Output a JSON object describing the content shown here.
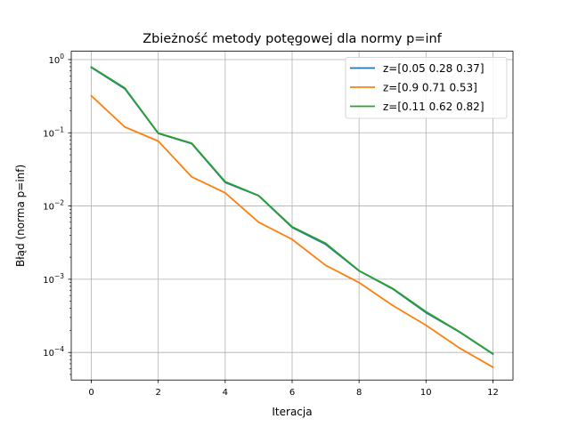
{
  "chart_data": {
    "type": "line",
    "title": "Zbieżność metody potęgowej dla normy p=inf",
    "xlabel": "Iteracja",
    "ylabel": "Błąd (norma p=inf)",
    "xscale": "linear",
    "yscale": "log",
    "xlim": [
      -0.6,
      12.6
    ],
    "ylim": [
      4.2e-05,
      1.3
    ],
    "grid": true,
    "legend_position": "top-right",
    "x": [
      0,
      1,
      2,
      3,
      4,
      5,
      6,
      7,
      8,
      9,
      10,
      11,
      12
    ],
    "xticks": [
      {
        "value": 0,
        "label": "0"
      },
      {
        "value": 2,
        "label": "2"
      },
      {
        "value": 4,
        "label": "4"
      },
      {
        "value": 6,
        "label": "6"
      },
      {
        "value": 8,
        "label": "8"
      },
      {
        "value": 10,
        "label": "10"
      },
      {
        "value": 12,
        "label": "12"
      }
    ],
    "yticks": [
      {
        "value": 1,
        "base": "10",
        "exp": "0"
      },
      {
        "value": 0.1,
        "base": "10",
        "exp": "−1"
      },
      {
        "value": 0.01,
        "base": "10",
        "exp": "−2"
      },
      {
        "value": 0.001,
        "base": "10",
        "exp": "−3"
      },
      {
        "value": 0.0001,
        "base": "10",
        "exp": "−4"
      }
    ],
    "series": [
      {
        "name": "z=[0.05 0.28 0.37]",
        "color": "#1f77b4",
        "values": [
          0.78,
          0.4,
          0.098,
          0.071,
          0.021,
          0.0138,
          0.0051,
          0.003,
          0.0013,
          0.00074,
          0.00035,
          0.00019,
          9.5e-05
        ]
      },
      {
        "name": "z=[0.9  0.71 0.53]",
        "color": "#ff7f0e",
        "values": [
          0.32,
          0.12,
          0.077,
          0.025,
          0.0151,
          0.006,
          0.0035,
          0.00155,
          0.0009,
          0.00044,
          0.000235,
          0.000115,
          6.3e-05
        ]
      },
      {
        "name": "z=[0.11 0.62 0.82]",
        "color": "#2ca02c",
        "values": [
          0.79,
          0.41,
          0.099,
          0.072,
          0.0215,
          0.0139,
          0.0052,
          0.0031,
          0.00131,
          0.00075,
          0.00036,
          0.000192,
          9.6e-05
        ]
      }
    ]
  }
}
